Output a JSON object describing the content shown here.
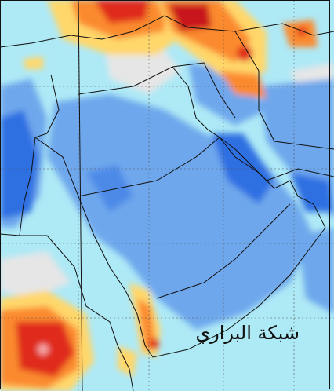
{
  "watermark": "شبكة البراري"
}
